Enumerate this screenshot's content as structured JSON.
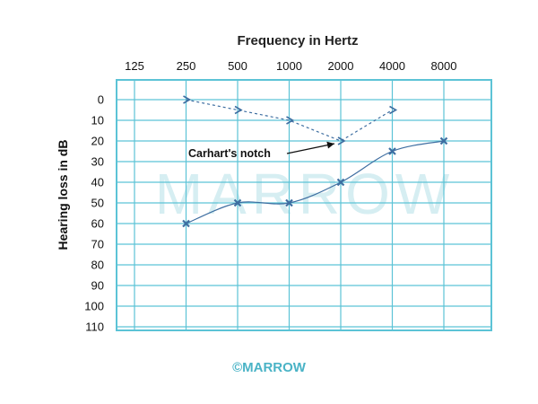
{
  "watermark": "MARROW",
  "copyright": "©MARROW",
  "chart_data": {
    "type": "line",
    "title": "Frequency in Hertz",
    "xlabel": "Frequency in Hertz",
    "ylabel": "Hearing loss in dB",
    "x_ticks": [
      "125",
      "250",
      "500",
      "1000",
      "2000",
      "4000",
      "8000"
    ],
    "y_ticks": [
      "0",
      "10",
      "20",
      "30",
      "40",
      "50",
      "60",
      "70",
      "80",
      "90",
      "100",
      "110"
    ],
    "ylim": [
      0,
      110
    ],
    "y_inverted": true,
    "grid": true,
    "series": [
      {
        "marker": "x",
        "line_style": "solid",
        "points": [
          {
            "x": "250",
            "y": 60
          },
          {
            "x": "500",
            "y": 50
          },
          {
            "x": "1000",
            "y": 50
          },
          {
            "x": "2000",
            "y": 40
          },
          {
            "x": "4000",
            "y": 25
          },
          {
            "x": "8000",
            "y": 20
          }
        ]
      },
      {
        "marker": ">",
        "line_style": "dashed",
        "points": [
          {
            "x": "250",
            "y": 0
          },
          {
            "x": "500",
            "y": 5
          },
          {
            "x": "1000",
            "y": 10
          },
          {
            "x": "2000",
            "y": 20
          },
          {
            "x": "4000",
            "y": 5
          }
        ]
      }
    ],
    "annotations": [
      {
        "text": "Carhart's notch",
        "points_to": {
          "x": "2000",
          "y": 20
        }
      }
    ],
    "colors": {
      "series": "#3e6ea1",
      "grid": "#5cc3d6",
      "axis_text": "#111111"
    }
  }
}
